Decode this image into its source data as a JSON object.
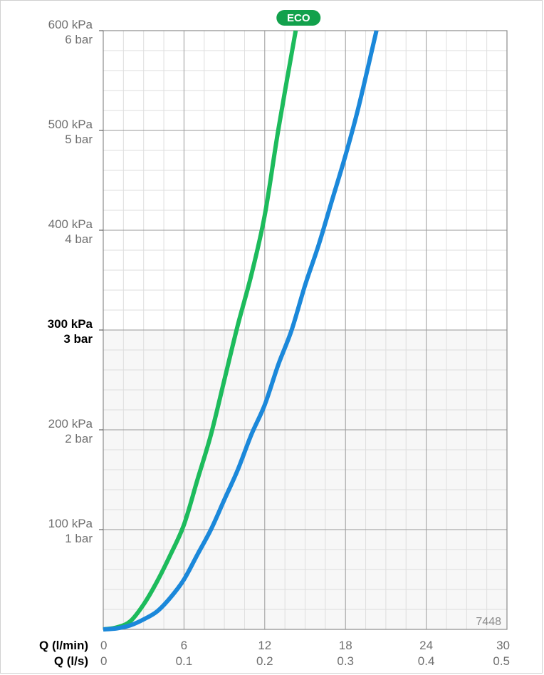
{
  "chart_data": {
    "type": "line",
    "x_axis": {
      "range": [
        0,
        30
      ],
      "label_primary": "Q (l/min)",
      "label_secondary": "Q (l/s)",
      "ticks_primary": [
        "0",
        "6",
        "12",
        "18",
        "24",
        "30"
      ],
      "ticks_secondary": [
        "0",
        "0.1",
        "0.2",
        "0.3",
        "0.4",
        "0.5"
      ]
    },
    "y_axis": {
      "range": [
        0,
        600
      ],
      "ticks": [
        {
          "value": 600,
          "kpa": "600 kPa",
          "bar": "6 bar",
          "bold": false
        },
        {
          "value": 500,
          "kpa": "500 kPa",
          "bar": "5 bar",
          "bold": false
        },
        {
          "value": 400,
          "kpa": "400 kPa",
          "bar": "4 bar",
          "bold": false
        },
        {
          "value": 300,
          "kpa": "300 kPa",
          "bar": "3 bar",
          "bold": true
        },
        {
          "value": 200,
          "kpa": "200 kPa",
          "bar": "2 bar",
          "bold": false
        },
        {
          "value": 100,
          "kpa": "100 kPa",
          "bar": "1 bar",
          "bold": false
        }
      ]
    },
    "grid": true,
    "series": [
      {
        "color": "#1dbb5c",
        "badge": "ECO",
        "x": [
          0,
          1,
          2,
          3,
          4,
          5,
          6,
          7,
          8,
          9,
          10,
          11,
          12,
          13,
          14.3
        ],
        "y": [
          0,
          2,
          8,
          25,
          48,
          75,
          105,
          150,
          195,
          250,
          305,
          355,
          415,
          500,
          600
        ]
      },
      {
        "color": "#1b88da",
        "x": [
          0,
          1,
          2,
          3,
          4,
          5,
          6,
          7,
          8,
          9,
          10,
          11,
          12,
          13,
          14,
          15,
          16,
          17,
          18,
          19,
          20.3
        ],
        "y": [
          0,
          1,
          4,
          10,
          18,
          32,
          50,
          75,
          100,
          130,
          160,
          195,
          225,
          265,
          300,
          345,
          385,
          430,
          475,
          525,
          600
        ]
      }
    ],
    "watermark": "7448"
  }
}
